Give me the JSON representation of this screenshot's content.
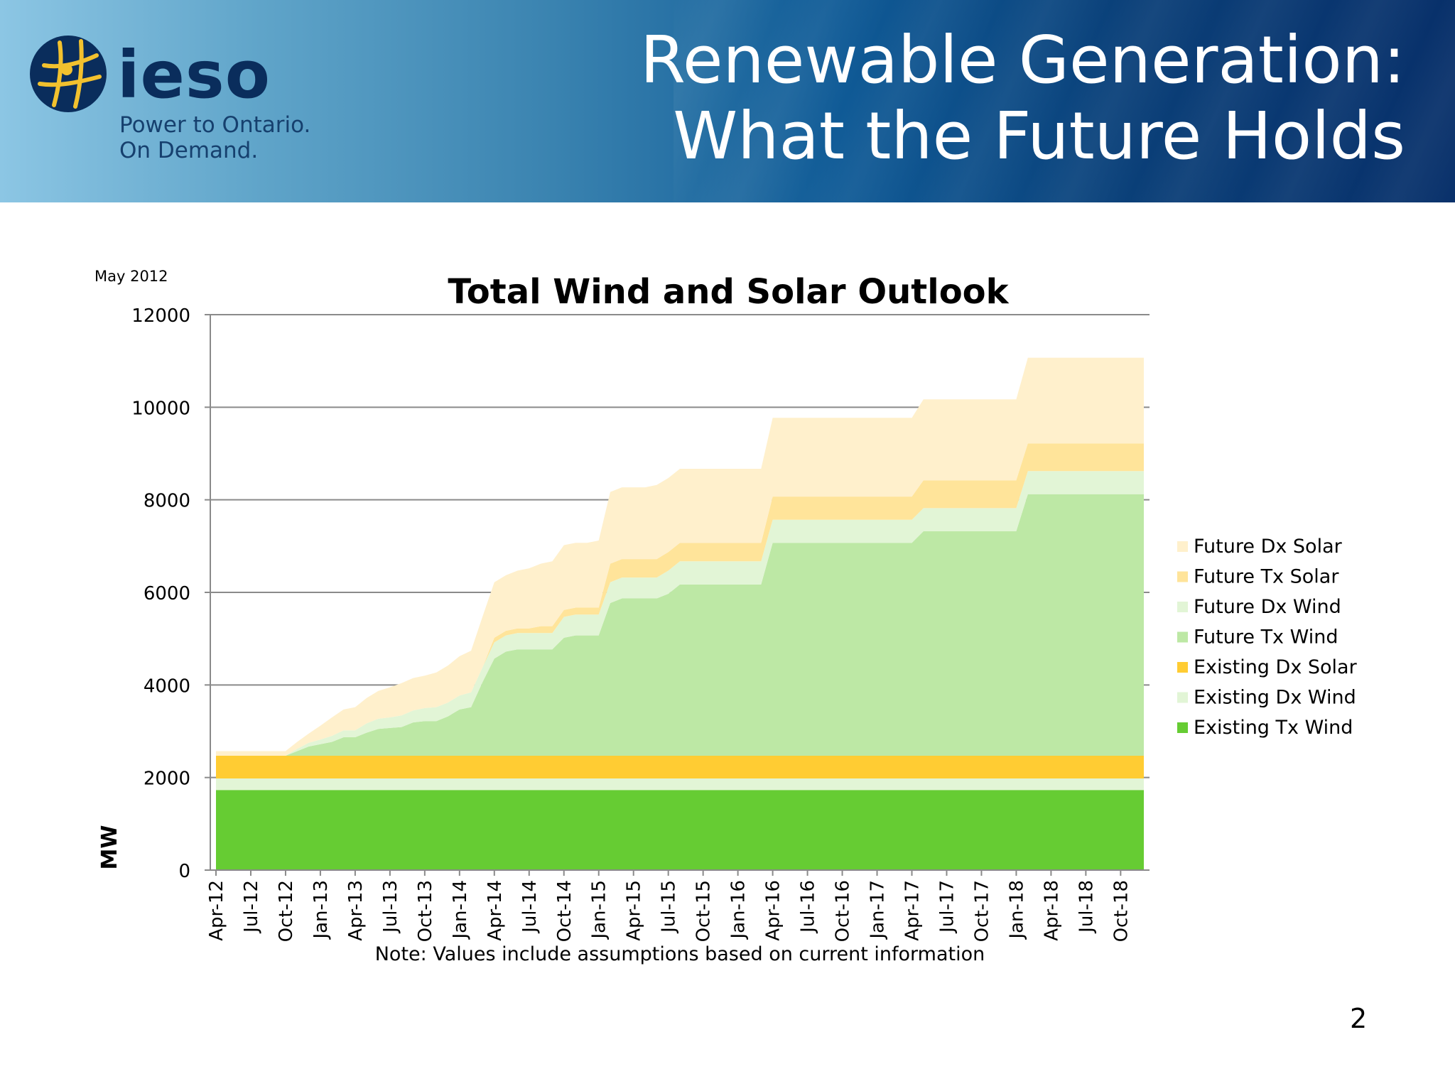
{
  "header": {
    "logo_text": "ieso",
    "tagline_1": "Power to Ontario.",
    "tagline_2": "On Demand.",
    "title_line_1": "Renewable Generation:",
    "title_line_2": "What the Future Holds"
  },
  "date_note": "May 2012",
  "page_number": "2",
  "colors": {
    "header_dark": "#08306a",
    "header_light": "#8cc6e4",
    "logo_navy": "#0a2d5c",
    "logo_gold": "#f2c12e"
  },
  "chart_data": {
    "type": "area",
    "stacked": true,
    "title": "Total Wind and Solar Outlook",
    "ylabel": "MW",
    "xlabel": "",
    "note": "Note: Values include assumptions based on current information",
    "ylim": [
      0,
      12000
    ],
    "yticks": [
      0,
      2000,
      4000,
      6000,
      8000,
      10000,
      12000
    ],
    "grid": true,
    "legend_position": "right",
    "x_tick_labels": [
      "Apr-12",
      "Jul-12",
      "Oct-12",
      "Jan-13",
      "Apr-13",
      "Jul-13",
      "Oct-13",
      "Jan-14",
      "Apr-14",
      "Jul-14",
      "Oct-14",
      "Jan-15",
      "Apr-15",
      "Jul-15",
      "Oct-15",
      "Jan-16",
      "Apr-16",
      "Jul-16",
      "Oct-16",
      "Jan-17",
      "Apr-17",
      "Jul-17",
      "Oct-17",
      "Jan-18",
      "Apr-18",
      "Jul-18",
      "Oct-18"
    ],
    "x_months": [
      "Apr-12",
      "May-12",
      "Jun-12",
      "Jul-12",
      "Aug-12",
      "Sep-12",
      "Oct-12",
      "Nov-12",
      "Dec-12",
      "Jan-13",
      "Feb-13",
      "Mar-13",
      "Apr-13",
      "May-13",
      "Jun-13",
      "Jul-13",
      "Aug-13",
      "Sep-13",
      "Oct-13",
      "Nov-13",
      "Dec-13",
      "Jan-14",
      "Feb-14",
      "Mar-14",
      "Apr-14",
      "May-14",
      "Jun-14",
      "Jul-14",
      "Aug-14",
      "Sep-14",
      "Oct-14",
      "Nov-14",
      "Dec-14",
      "Jan-15",
      "Feb-15",
      "Mar-15",
      "Apr-15",
      "May-15",
      "Jun-15",
      "Jul-15",
      "Aug-15",
      "Sep-15",
      "Oct-15",
      "Nov-15",
      "Dec-15",
      "Jan-16",
      "Feb-16",
      "Mar-16",
      "Apr-16",
      "May-16",
      "Jun-16",
      "Jul-16",
      "Aug-16",
      "Sep-16",
      "Oct-16",
      "Nov-16",
      "Dec-16",
      "Jan-17",
      "Feb-17",
      "Mar-17",
      "Apr-17",
      "May-17",
      "Jun-17",
      "Jul-17",
      "Aug-17",
      "Sep-17",
      "Oct-17",
      "Nov-17",
      "Dec-17",
      "Jan-18",
      "Feb-18",
      "Mar-18",
      "Apr-18",
      "May-18",
      "Jun-18",
      "Jul-18",
      "Aug-18",
      "Sep-18",
      "Oct-18",
      "Nov-18",
      "Dec-18"
    ],
    "series": [
      {
        "name": "Existing Tx Wind",
        "color": "#66cc33",
        "values": [
          1730,
          1730,
          1730,
          1730,
          1730,
          1730,
          1730,
          1730,
          1730,
          1730,
          1730,
          1730,
          1730,
          1730,
          1730,
          1730,
          1730,
          1730,
          1730,
          1730,
          1730,
          1730,
          1730,
          1730,
          1730,
          1730,
          1730,
          1730,
          1730,
          1730,
          1730,
          1730,
          1730,
          1730,
          1730,
          1730,
          1730,
          1730,
          1730,
          1730,
          1730,
          1730,
          1730,
          1730,
          1730,
          1730,
          1730,
          1730,
          1730,
          1730,
          1730,
          1730,
          1730,
          1730,
          1730,
          1730,
          1730,
          1730,
          1730,
          1730,
          1730,
          1730,
          1730,
          1730,
          1730,
          1730,
          1730,
          1730,
          1730,
          1730,
          1730,
          1730,
          1730,
          1730,
          1730,
          1730,
          1730,
          1730,
          1730,
          1730,
          1730
        ]
      },
      {
        "name": "Existing Dx Wind",
        "color": "#e2f5d6",
        "values": [
          250,
          250,
          250,
          250,
          250,
          250,
          250,
          250,
          250,
          250,
          250,
          250,
          250,
          250,
          250,
          250,
          250,
          250,
          250,
          250,
          250,
          250,
          250,
          250,
          250,
          250,
          250,
          250,
          250,
          250,
          250,
          250,
          250,
          250,
          250,
          250,
          250,
          250,
          250,
          250,
          250,
          250,
          250,
          250,
          250,
          250,
          250,
          250,
          250,
          250,
          250,
          250,
          250,
          250,
          250,
          250,
          250,
          250,
          250,
          250,
          250,
          250,
          250,
          250,
          250,
          250,
          250,
          250,
          250,
          250,
          250,
          250,
          250,
          250,
          250,
          250,
          250,
          250,
          250,
          250,
          250
        ]
      },
      {
        "name": "Existing Dx Solar",
        "color": "#ffcc33",
        "values": [
          490,
          490,
          490,
          490,
          490,
          490,
          490,
          490,
          490,
          490,
          490,
          490,
          490,
          490,
          490,
          490,
          490,
          490,
          490,
          490,
          490,
          490,
          490,
          490,
          490,
          490,
          490,
          490,
          490,
          490,
          490,
          490,
          490,
          490,
          490,
          490,
          490,
          490,
          490,
          490,
          490,
          490,
          490,
          490,
          490,
          490,
          490,
          490,
          490,
          490,
          490,
          490,
          490,
          490,
          490,
          490,
          490,
          490,
          490,
          490,
          490,
          490,
          490,
          490,
          490,
          490,
          490,
          490,
          490,
          490,
          490,
          490,
          490,
          490,
          490,
          490,
          490,
          490,
          490,
          490,
          490
        ]
      },
      {
        "name": "Future Tx Wind",
        "color": "#bde8a5",
        "values": [
          0,
          0,
          0,
          0,
          0,
          0,
          0,
          100,
          200,
          250,
          300,
          400,
          400,
          500,
          580,
          600,
          620,
          720,
          750,
          750,
          850,
          1000,
          1050,
          1600,
          2100,
          2250,
          2300,
          2300,
          2300,
          2300,
          2550,
          2600,
          2600,
          2600,
          3300,
          3400,
          3400,
          3400,
          3400,
          3500,
          3700,
          3700,
          3700,
          3700,
          3700,
          3700,
          3700,
          3700,
          4600,
          4600,
          4600,
          4600,
          4600,
          4600,
          4600,
          4600,
          4600,
          4600,
          4600,
          4600,
          4600,
          4850,
          4850,
          4850,
          4850,
          4850,
          4850,
          4850,
          4850,
          4850,
          5650,
          5650,
          5650,
          5650,
          5650,
          5650,
          5650,
          5650,
          5650,
          5650,
          5650
        ]
      },
      {
        "name": "Future Dx Wind",
        "color": "#e2f5d6",
        "values": [
          0,
          0,
          0,
          0,
          0,
          0,
          0,
          50,
          80,
          100,
          130,
          150,
          150,
          200,
          220,
          230,
          250,
          260,
          280,
          300,
          300,
          300,
          320,
          320,
          350,
          350,
          350,
          350,
          350,
          350,
          450,
          450,
          450,
          450,
          450,
          450,
          450,
          450,
          450,
          500,
          500,
          500,
          500,
          500,
          500,
          500,
          500,
          500,
          500,
          500,
          500,
          500,
          500,
          500,
          500,
          500,
          500,
          500,
          500,
          500,
          500,
          500,
          500,
          500,
          500,
          500,
          500,
          500,
          500,
          500,
          500,
          500,
          500,
          500,
          500,
          500,
          500,
          500,
          500,
          500,
          500
        ]
      },
      {
        "name": "Future Tx Solar",
        "color": "#ffe49a",
        "values": [
          0,
          0,
          0,
          0,
          0,
          0,
          0,
          0,
          0,
          0,
          0,
          0,
          0,
          0,
          0,
          0,
          0,
          0,
          0,
          0,
          0,
          0,
          0,
          0,
          100,
          100,
          100,
          100,
          150,
          150,
          150,
          150,
          150,
          150,
          400,
          400,
          400,
          400,
          400,
          400,
          400,
          400,
          400,
          400,
          400,
          400,
          400,
          400,
          500,
          500,
          500,
          500,
          500,
          500,
          500,
          500,
          500,
          500,
          500,
          500,
          500,
          600,
          600,
          600,
          600,
          600,
          600,
          600,
          600,
          600,
          600,
          600,
          600,
          600,
          600,
          600,
          600,
          600,
          600,
          600,
          600
        ]
      },
      {
        "name": "Future Dx Solar",
        "color": "#fff0cc",
        "values": [
          100,
          100,
          100,
          100,
          100,
          100,
          100,
          150,
          200,
          300,
          400,
          450,
          500,
          550,
          600,
          650,
          700,
          700,
          700,
          750,
          800,
          850,
          900,
          1100,
          1200,
          1200,
          1250,
          1300,
          1350,
          1400,
          1400,
          1400,
          1400,
          1450,
          1550,
          1550,
          1550,
          1550,
          1600,
          1600,
          1600,
          1600,
          1600,
          1600,
          1600,
          1600,
          1600,
          1600,
          1700,
          1700,
          1700,
          1700,
          1700,
          1700,
          1700,
          1700,
          1700,
          1700,
          1700,
          1700,
          1700,
          1750,
          1750,
          1750,
          1750,
          1750,
          1750,
          1750,
          1750,
          1750,
          1850,
          1850,
          1850,
          1850,
          1850,
          1850,
          1850,
          1850,
          1850,
          1850,
          1850
        ]
      }
    ]
  }
}
